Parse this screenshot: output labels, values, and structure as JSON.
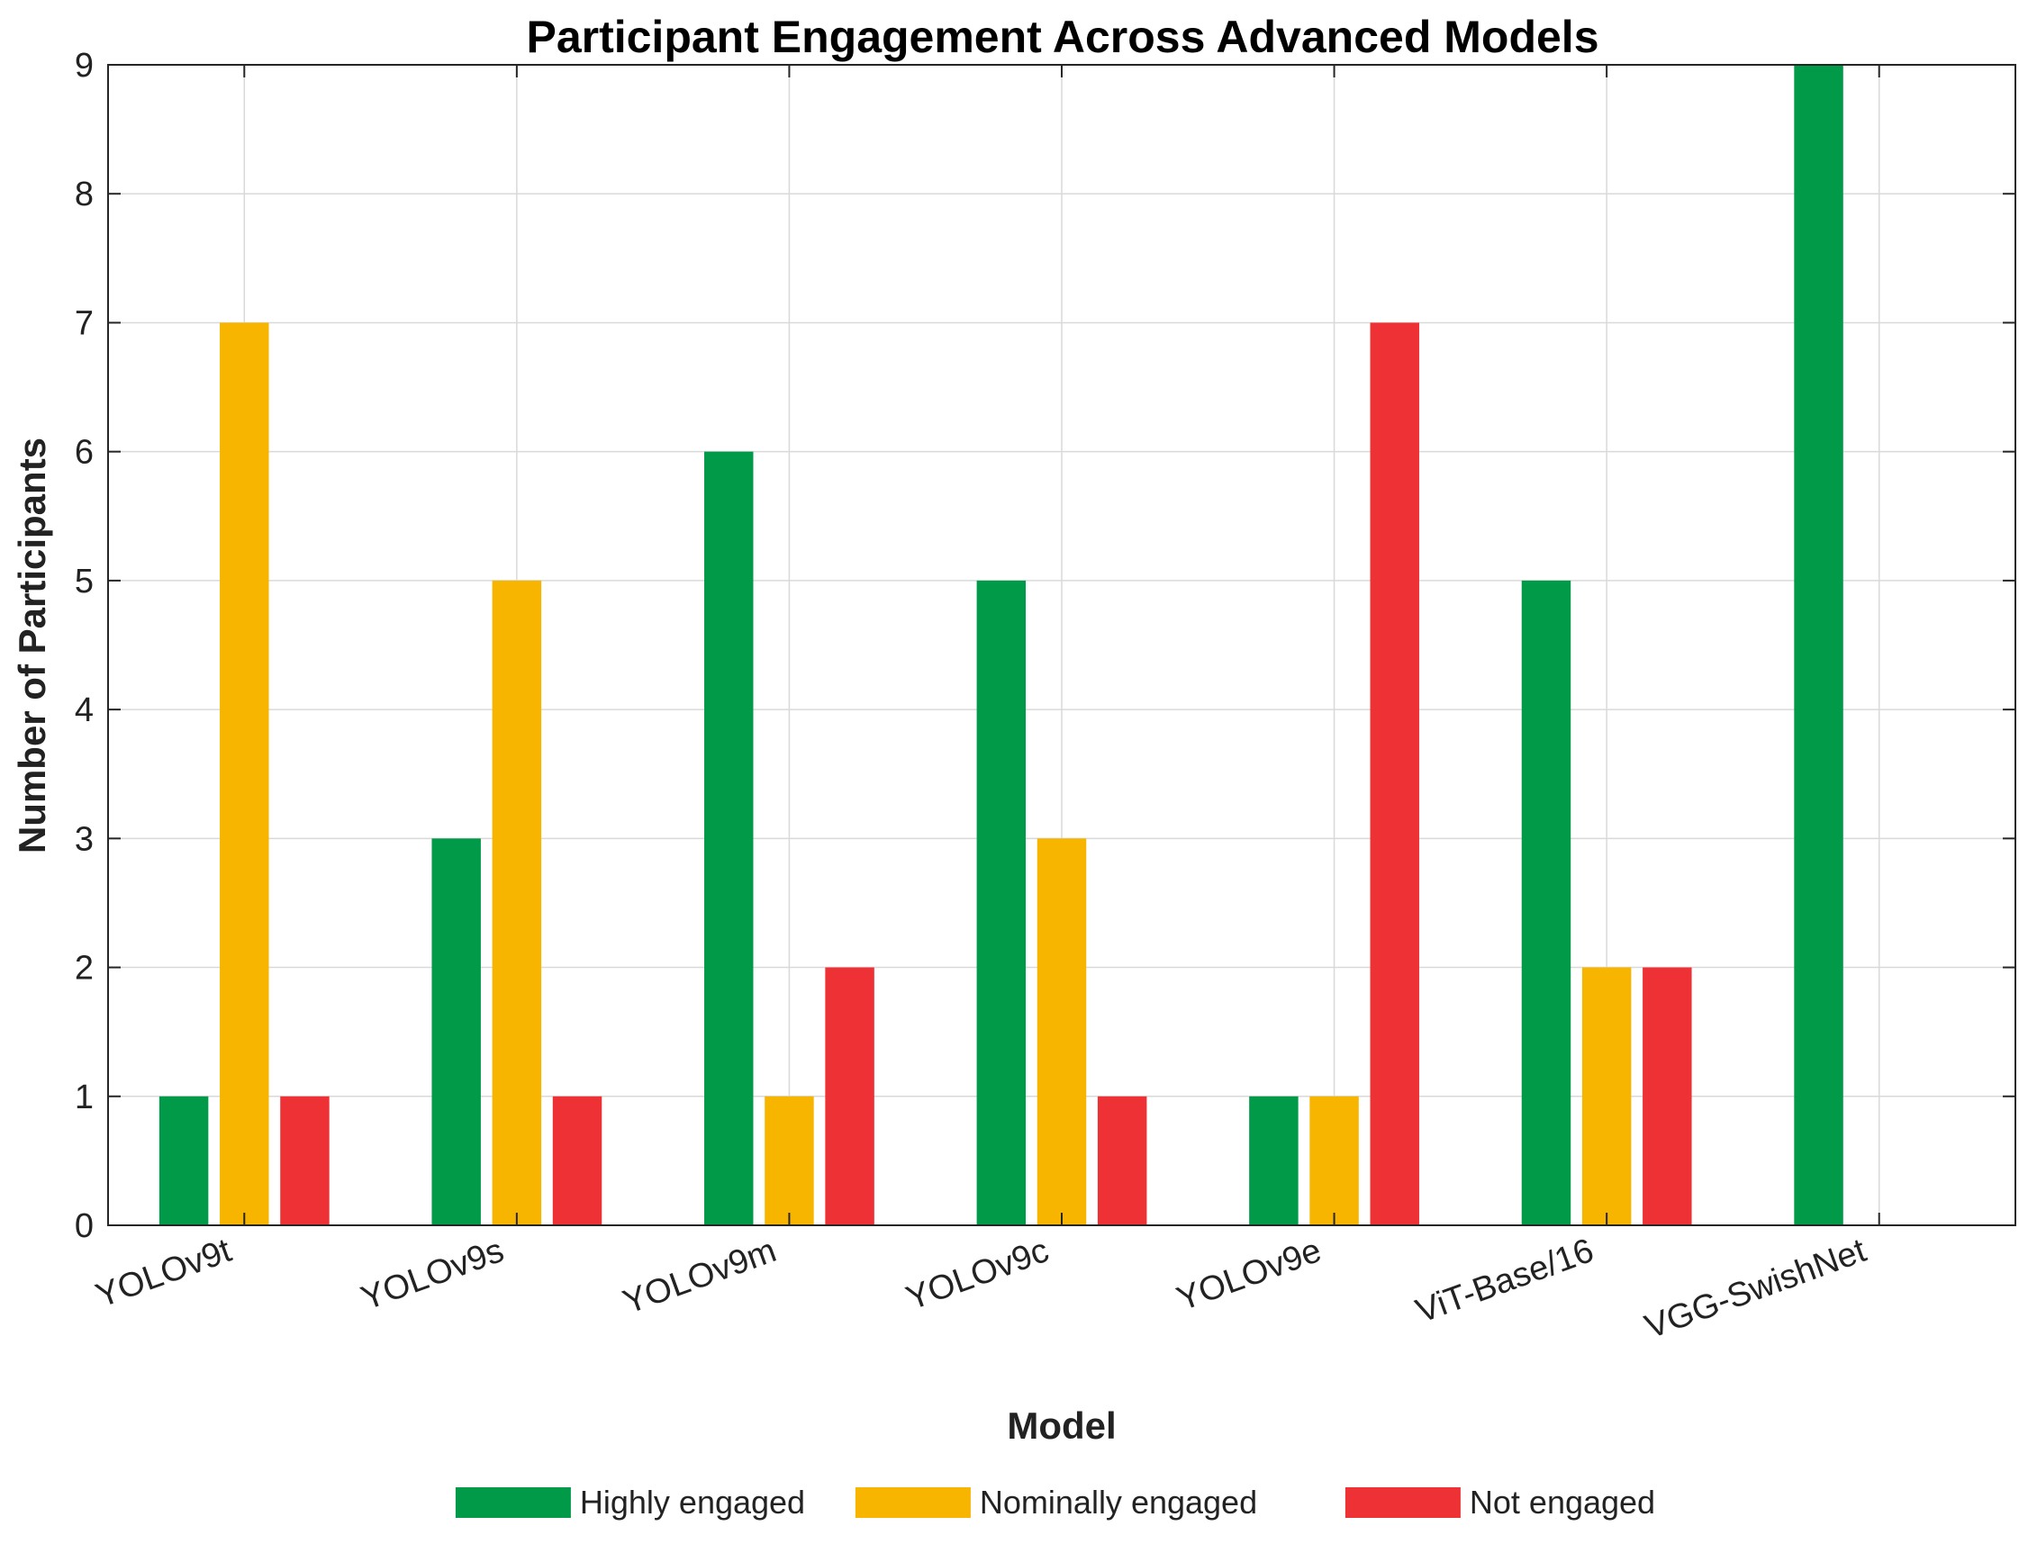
{
  "chart_data": {
    "type": "bar",
    "title": "Participant Engagement Across Advanced Models",
    "xlabel": "Model",
    "ylabel": "Number of Participants",
    "categories": [
      "YOLOv9t",
      "YOLOv9s",
      "YOLOv9m",
      "YOLOv9c",
      "YOLOv9e",
      "ViT-Base/16",
      "VGG-SwishNet"
    ],
    "series": [
      {
        "name": "Highly engaged",
        "color": "#009A49",
        "values": [
          1,
          3,
          6,
          5,
          1,
          5,
          9
        ]
      },
      {
        "name": "Nominally engaged",
        "color": "#F7B500",
        "values": [
          7,
          5,
          1,
          3,
          1,
          2,
          0
        ]
      },
      {
        "name": "Not engaged",
        "color": "#EE3135",
        "values": [
          1,
          1,
          2,
          1,
          7,
          2,
          0
        ]
      }
    ],
    "ylim": [
      0,
      9
    ],
    "yticks": [
      "0",
      "1",
      "2",
      "3",
      "4",
      "5",
      "6",
      "7",
      "8",
      "9"
    ],
    "grid": true,
    "legend_position": "bottom"
  }
}
